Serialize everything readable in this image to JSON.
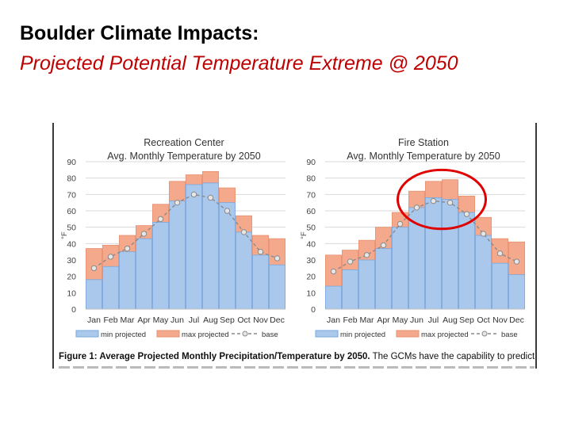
{
  "slide": {
    "title": "Boulder Climate Impacts:",
    "subtitle": "Projected Potential Temperature Extreme @ 2050"
  },
  "caption": {
    "bold": "Figure 1: Average Projected Monthly Precipitation/Temperature by 2050.",
    "text": " The GCMs have the capability to predict"
  },
  "colors": {
    "min_fill": "#a9c8ec",
    "min_stroke": "#7aa7dd",
    "max_fill": "#f4a98c",
    "max_stroke": "#e8906f",
    "base_line": "#8a8a8a",
    "highlight_circle": "#e00000"
  },
  "chart_data": [
    {
      "type": "bar",
      "title": "Recreation Center",
      "subtitle": "Avg. Monthly Temperature by 2050",
      "ylabel": "°F",
      "ylim": [
        0,
        90
      ],
      "yticks": [
        0,
        10,
        20,
        30,
        40,
        50,
        60,
        70,
        80,
        90
      ],
      "categories": [
        "Jan",
        "Feb",
        "Mar",
        "Apr",
        "May",
        "Jun",
        "Jul",
        "Aug",
        "Sep",
        "Oct",
        "Nov",
        "Dec"
      ],
      "series": [
        {
          "name": "min projected",
          "values": [
            18,
            26,
            35,
            43,
            53,
            66,
            76,
            77,
            65,
            47,
            33,
            27
          ]
        },
        {
          "name": "max projected",
          "values": [
            37,
            39,
            45,
            51,
            64,
            78,
            82,
            84,
            74,
            57,
            45,
            43
          ]
        },
        {
          "name": "base",
          "values": [
            25,
            32,
            37,
            46,
            55,
            65,
            70,
            68,
            60,
            47,
            35,
            31
          ]
        }
      ],
      "legend": "bottom"
    },
    {
      "type": "bar",
      "title": "Fire Station",
      "subtitle": "Avg. Monthly Temperature by 2050",
      "ylabel": "°F",
      "ylim": [
        0,
        90
      ],
      "yticks": [
        0,
        10,
        20,
        30,
        40,
        50,
        60,
        70,
        80,
        90
      ],
      "categories": [
        "Jan",
        "Feb",
        "Mar",
        "Apr",
        "May",
        "Jun",
        "Jul",
        "Aug",
        "Sep",
        "Oct",
        "Nov",
        "Dec"
      ],
      "series": [
        {
          "name": "min projected",
          "values": [
            14,
            24,
            30,
            37,
            50,
            62,
            68,
            67,
            59,
            45,
            28,
            21
          ]
        },
        {
          "name": "max projected",
          "values": [
            33,
            36,
            42,
            50,
            59,
            72,
            78,
            79,
            69,
            56,
            43,
            41
          ]
        },
        {
          "name": "base",
          "values": [
            23,
            29,
            33,
            39,
            52,
            62,
            66,
            65,
            58,
            46,
            34,
            29
          ]
        }
      ],
      "legend": "bottom",
      "highlight": "Jun–Sep"
    }
  ]
}
